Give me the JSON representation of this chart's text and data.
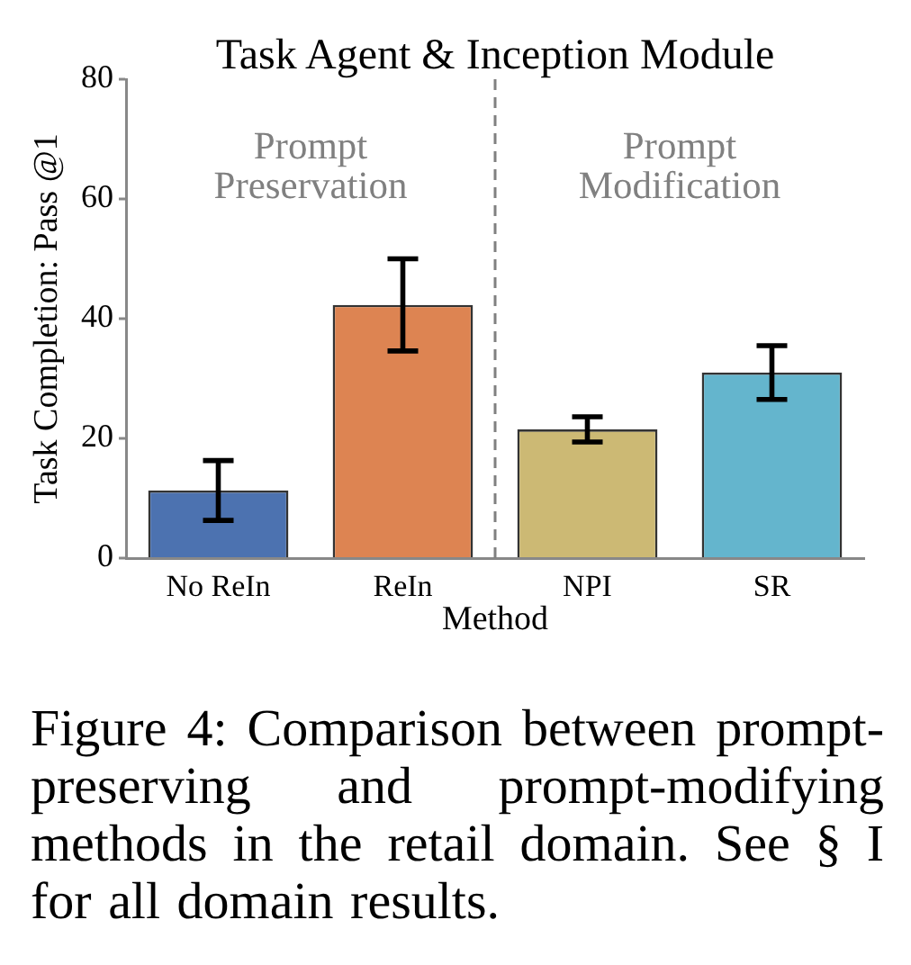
{
  "chart_data": {
    "type": "bar",
    "title": "Task Agent & Inception Module",
    "xlabel": "Method",
    "ylabel": "Task Completion: Pass @1",
    "categories": [
      "No ReIn",
      "ReIn",
      "NPI",
      "SR"
    ],
    "values": [
      11.3,
      42.3,
      21.5,
      31.0
    ],
    "colors": [
      "#4c72b0",
      "#dd8452",
      "#ccb974",
      "#64b5cd"
    ],
    "errors": [
      5.0,
      7.7,
      2.1,
      4.5
    ],
    "ylim": [
      0,
      80
    ],
    "yticks": [
      0,
      20,
      40,
      60,
      80
    ],
    "annotations": [
      "Prompt Preservation",
      "Prompt Modification",
      "Figure 4: Comparison between prompt-preserving and prompt-modifying methods in the retail domain. See § I for all domain results."
    ]
  }
}
